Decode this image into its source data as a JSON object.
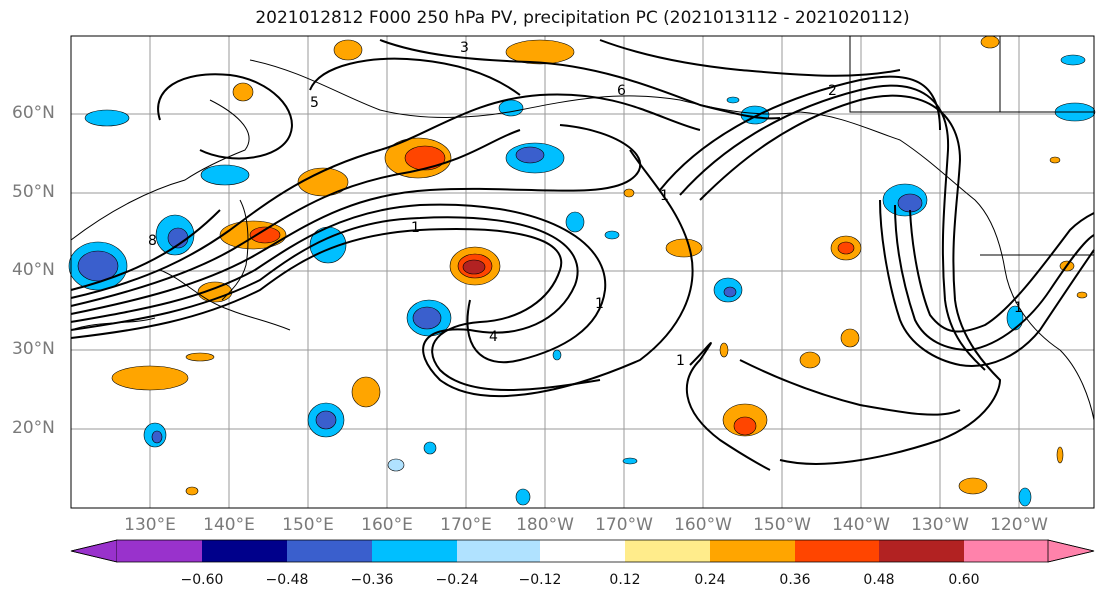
{
  "title": "2021012812 F000 250 hPa PV, precipitation PC (2021013112 - 2021020112)",
  "lat_labels": [
    "60°N",
    "50°N",
    "40°N",
    "30°N",
    "20°N"
  ],
  "lon_labels": [
    "130°E",
    "140°E",
    "150°E",
    "160°E",
    "170°E",
    "180°W",
    "170°W",
    "160°W",
    "150°W",
    "140°W",
    "130°W",
    "120°W"
  ],
  "contour_labels": [
    "1",
    "1",
    "1",
    "1",
    "1",
    "2",
    "3",
    "4",
    "5",
    "6",
    "8"
  ],
  "colorbar": {
    "ticks": [
      "−0.60",
      "−0.48",
      "−0.36",
      "−0.24",
      "−0.12",
      "0.12",
      "0.24",
      "0.36",
      "0.48",
      "0.60"
    ],
    "colors": [
      "#9932cc",
      "#00008b",
      "#3a5fcd",
      "#00bfff",
      "#b0e2ff",
      "#ffffff",
      "#ffec8b",
      "#ffa500",
      "#ff4500",
      "#b22222",
      "#ff82ab"
    ]
  }
}
